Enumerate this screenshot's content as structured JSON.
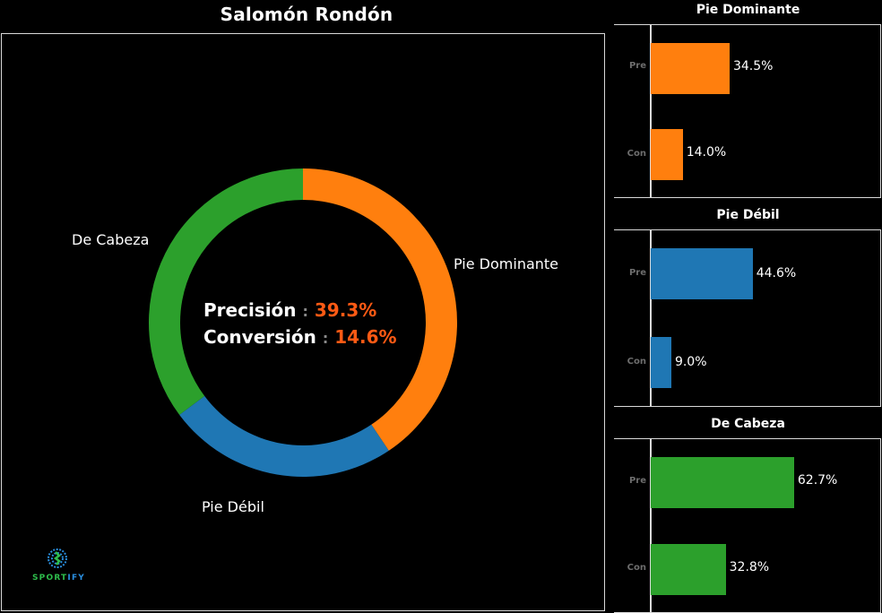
{
  "title": "Salomón Rondón",
  "colors": {
    "pie_dominante": "#ff7f0e",
    "pie_debil": "#1f77b4",
    "de_cabeza": "#2ca02c",
    "highlight": "#ff5a14"
  },
  "center": {
    "precision_label": "Precisión",
    "precision_value": "39.3%",
    "conversion_label": "Conversión",
    "conversion_value": "14.6%",
    "separator": ":"
  },
  "logo": {
    "text_a": "SPORT",
    "text_b": "IFY"
  },
  "chart_data": [
    {
      "type": "pie",
      "title": "Salomón Rondón",
      "donut": true,
      "categories": [
        "Pie Dominante",
        "Pie Débil",
        "De Cabeza"
      ],
      "values": [
        40.6,
        24.2,
        35.2
      ],
      "colors": [
        "#ff7f0e",
        "#1f77b4",
        "#2ca02c"
      ],
      "annotations": [
        "Precisión : 39.3%",
        "Conversión : 14.6%"
      ]
    },
    {
      "type": "bar",
      "orientation": "horizontal",
      "title": "Pie Dominante",
      "categories": [
        "Pre",
        "Con"
      ],
      "values": [
        34.5,
        14.0
      ],
      "labels": [
        "34.5%",
        "14.0%"
      ],
      "color": "#ff7f0e"
    },
    {
      "type": "bar",
      "orientation": "horizontal",
      "title": "Pie Débil",
      "categories": [
        "Pre",
        "Con"
      ],
      "values": [
        44.6,
        9.0
      ],
      "labels": [
        "44.6%",
        "9.0%"
      ],
      "color": "#1f77b4"
    },
    {
      "type": "bar",
      "orientation": "horizontal",
      "title": "De Cabeza",
      "categories": [
        "Pre",
        "Con"
      ],
      "values": [
        62.7,
        32.8
      ],
      "labels": [
        "62.7%",
        "32.8%"
      ],
      "color": "#2ca02c"
    }
  ]
}
